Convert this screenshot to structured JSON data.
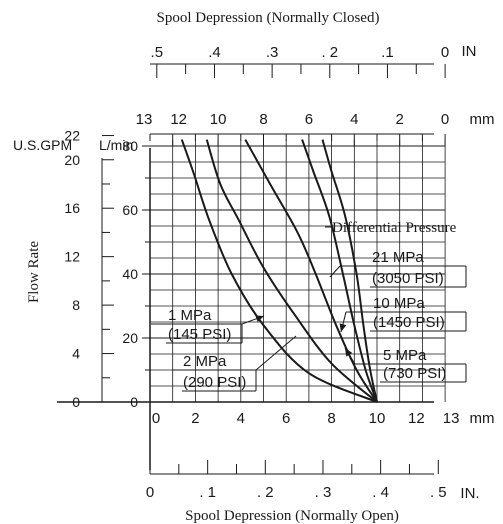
{
  "chart_data": {
    "type": "line",
    "top_title": "Spool Depression (Normally Closed)",
    "bottom_title": "Spool Depression (Normally Open)",
    "ylabel": "Flow Rate",
    "top_in": {
      "ticks": [
        ".5",
        ".4",
        ".3",
        ". 2",
        ".1",
        "0"
      ],
      "unit": "IN"
    },
    "top_mm": {
      "ticks": [
        "13",
        "12",
        "10",
        "8",
        "6",
        "4",
        "2",
        "0"
      ],
      "unit": "mm"
    },
    "bottom_mm": {
      "ticks": [
        "0",
        "2",
        "4",
        "6",
        "8",
        "10",
        "12",
        "13"
      ],
      "unit": "mm"
    },
    "bottom_in": {
      "ticks": [
        "0",
        ". 1",
        ". 2",
        ". 3",
        ". 4",
        ". 5"
      ],
      "unit": "IN."
    },
    "gpm": {
      "title": "U.S.GPM",
      "ticks": [
        "22",
        "20",
        "16",
        "12",
        "8",
        "4",
        "0"
      ]
    },
    "lpm": {
      "title": "L/min",
      "ticks": [
        "80",
        "60",
        "40",
        "20",
        "0"
      ]
    },
    "xlim": [
      0,
      13
    ],
    "ylim": [
      0,
      80
    ],
    "grid": true,
    "legend_title": "Differential Pressure",
    "series": [
      {
        "label_top": "1 MPa",
        "label_bottom": "(145 PSI)",
        "points": [
          [
            10,
            0
          ],
          [
            7,
            9
          ],
          [
            5,
            24
          ],
          [
            3.6,
            40
          ],
          [
            2.6,
            57
          ],
          [
            1.9,
            72
          ],
          [
            1.4,
            82
          ]
        ]
      },
      {
        "label_top": "2 MPa",
        "label_bottom": "(290 PSI)",
        "points": [
          [
            10,
            0
          ],
          [
            8,
            12
          ],
          [
            6.4,
            27
          ],
          [
            5,
            42
          ],
          [
            3.9,
            57
          ],
          [
            3.1,
            68
          ],
          [
            2.5,
            82
          ]
        ]
      },
      {
        "label_top": "5 MPa",
        "label_bottom": "(730 PSI)",
        "points": [
          [
            10,
            0
          ],
          [
            9.1,
            10
          ],
          [
            8.2,
            24
          ],
          [
            7.3,
            40
          ],
          [
            6.5,
            53
          ],
          [
            5.3,
            68
          ],
          [
            4.2,
            82
          ]
        ]
      },
      {
        "label_top": "10 MPa",
        "label_bottom": "(1450 PSI)",
        "points": [
          [
            10,
            0
          ],
          [
            9.5,
            10
          ],
          [
            9,
            24
          ],
          [
            8.5,
            40
          ],
          [
            7.9,
            58
          ],
          [
            7.2,
            72
          ],
          [
            6.7,
            82
          ]
        ]
      },
      {
        "label_top": "21 MPa",
        "label_bottom": "(3050 PSI)",
        "points": [
          [
            10,
            0
          ],
          [
            9.7,
            10
          ],
          [
            9.4,
            24
          ],
          [
            9.1,
            40
          ],
          [
            8.6,
            58
          ],
          [
            8,
            72
          ],
          [
            7.6,
            82
          ]
        ]
      }
    ]
  }
}
